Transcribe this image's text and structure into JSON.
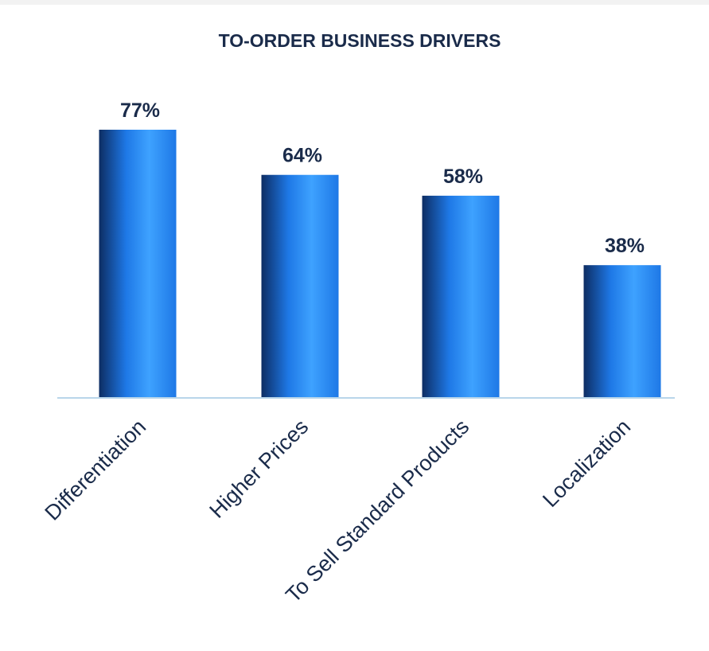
{
  "chart_data": {
    "type": "bar",
    "title": "TO-ORDER BUSINESS DRIVERS",
    "categories": [
      "Differentiation",
      "Higher Prices",
      "To Sell Standard Products",
      "Localization"
    ],
    "values": [
      77,
      64,
      58,
      38
    ],
    "value_labels": [
      "77%",
      "64%",
      "58%",
      "38%"
    ],
    "ylim": [
      0,
      100
    ],
    "grid": false,
    "legend": "none",
    "colors": {
      "bar_dark": "#0d2d63",
      "bar_mid": "#1e78e6",
      "bar_light": "#3ea2ff",
      "baseline": "#b9d6ea",
      "text": "#1a2b4a"
    }
  }
}
